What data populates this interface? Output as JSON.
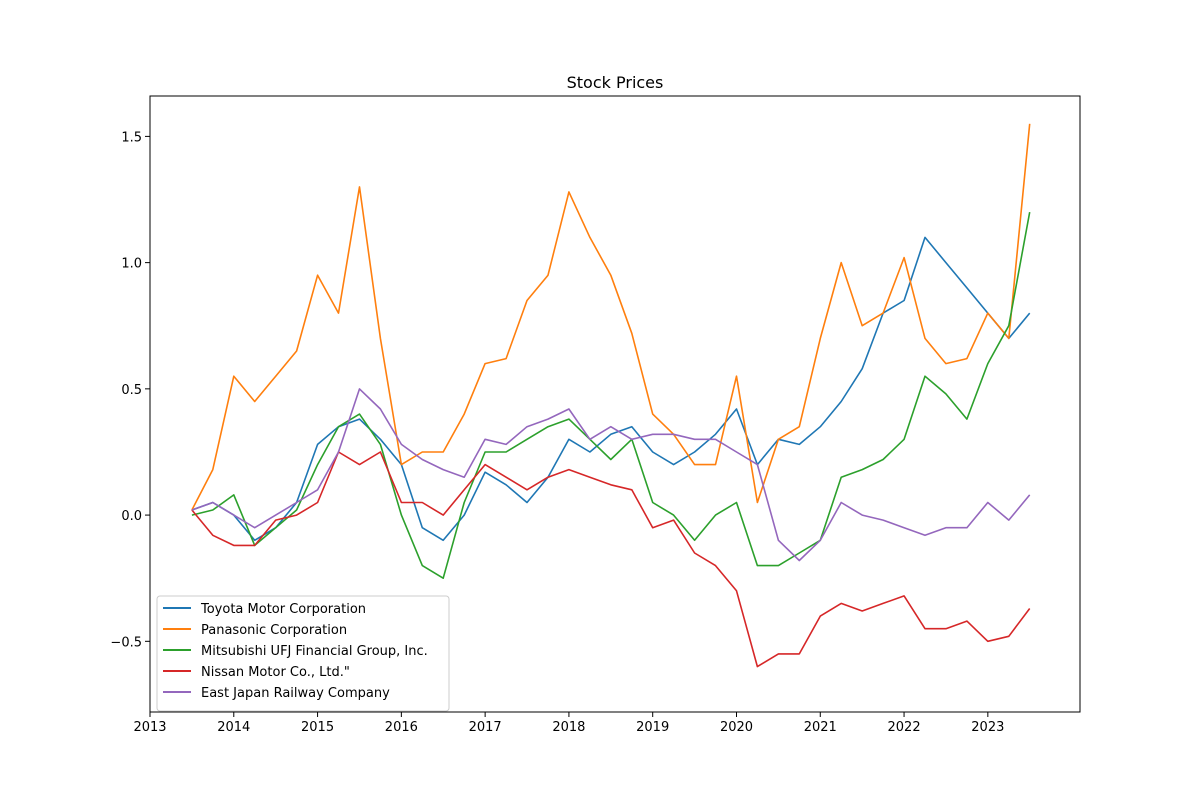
{
  "chart_data": {
    "type": "line",
    "title": "Stock Prices",
    "xlabel": "",
    "ylabel": "",
    "xlim": [
      2013.0,
      2024.1
    ],
    "ylim": [
      -0.78,
      1.66
    ],
    "x_ticks": [
      "2013",
      "2014",
      "2015",
      "2016",
      "2017",
      "2018",
      "2019",
      "2020",
      "2021",
      "2022",
      "2023"
    ],
    "y_ticks": [
      {
        "value": -0.5,
        "label": "−0.5"
      },
      {
        "value": 0.0,
        "label": "0.0"
      },
      {
        "value": 0.5,
        "label": "0.5"
      },
      {
        "value": 1.0,
        "label": "1.0"
      },
      {
        "value": 1.5,
        "label": "1.5"
      }
    ],
    "grid": false,
    "legend_position": "lower-left",
    "x": [
      2013.5,
      2013.75,
      2014.0,
      2014.25,
      2014.5,
      2014.75,
      2015.0,
      2015.25,
      2015.5,
      2015.75,
      2016.0,
      2016.25,
      2016.5,
      2016.75,
      2017.0,
      2017.25,
      2017.5,
      2017.75,
      2018.0,
      2018.25,
      2018.5,
      2018.75,
      2019.0,
      2019.25,
      2019.5,
      2019.75,
      2020.0,
      2020.25,
      2020.5,
      2020.75,
      2021.0,
      2021.25,
      2021.5,
      2021.75,
      2022.0,
      2022.25,
      2022.5,
      2022.75,
      2023.0,
      2023.25,
      2023.5
    ],
    "series": [
      {
        "name": "Toyota Motor Corporation",
        "color": "#1f77b4",
        "values": [
          0.02,
          0.05,
          0.0,
          -0.1,
          -0.05,
          0.05,
          0.28,
          0.35,
          0.38,
          0.3,
          0.2,
          -0.05,
          -0.1,
          0.0,
          0.17,
          0.12,
          0.05,
          0.15,
          0.3,
          0.25,
          0.32,
          0.35,
          0.25,
          0.2,
          0.25,
          0.32,
          0.42,
          0.2,
          0.3,
          0.28,
          0.35,
          0.45,
          0.58,
          0.8,
          0.85,
          1.1,
          1.0,
          0.9,
          0.8,
          0.7,
          0.8
        ]
      },
      {
        "name": "Panasonic Corporation",
        "color": "#ff7f0e",
        "values": [
          0.02,
          0.18,
          0.55,
          0.45,
          0.55,
          0.65,
          0.95,
          0.8,
          1.3,
          0.7,
          0.2,
          0.25,
          0.25,
          0.4,
          0.6,
          0.62,
          0.85,
          0.95,
          1.28,
          1.1,
          0.95,
          0.72,
          0.4,
          0.32,
          0.2,
          0.2,
          0.55,
          0.05,
          0.3,
          0.35,
          0.7,
          1.0,
          0.75,
          0.8,
          1.02,
          0.7,
          0.6,
          0.62,
          0.8,
          0.7,
          1.55
        ]
      },
      {
        "name": "Mitsubishi UFJ Financial Group, Inc.",
        "color": "#2ca02c",
        "values": [
          0.0,
          0.02,
          0.08,
          -0.12,
          -0.05,
          0.02,
          0.2,
          0.35,
          0.4,
          0.28,
          0.0,
          -0.2,
          -0.25,
          0.05,
          0.25,
          0.25,
          0.3,
          0.35,
          0.38,
          0.3,
          0.22,
          0.3,
          0.05,
          0.0,
          -0.1,
          0.0,
          0.05,
          -0.2,
          -0.2,
          -0.15,
          -0.1,
          0.15,
          0.18,
          0.22,
          0.3,
          0.55,
          0.48,
          0.38,
          0.6,
          0.75,
          1.2
        ]
      },
      {
        "name": "Nissan Motor Co., Ltd.\"",
        "color": "#d62728",
        "values": [
          0.02,
          -0.08,
          -0.12,
          -0.12,
          -0.02,
          0.0,
          0.05,
          0.25,
          0.2,
          0.25,
          0.05,
          0.05,
          0.0,
          0.1,
          0.2,
          0.15,
          0.1,
          0.15,
          0.18,
          0.15,
          0.12,
          0.1,
          -0.05,
          -0.02,
          -0.15,
          -0.2,
          -0.3,
          -0.6,
          -0.55,
          -0.55,
          -0.4,
          -0.35,
          -0.38,
          -0.35,
          -0.32,
          -0.45,
          -0.45,
          -0.42,
          -0.5,
          -0.48,
          -0.37
        ]
      },
      {
        "name": "East Japan Railway Company",
        "color": "#9467bd",
        "values": [
          0.02,
          0.05,
          0.0,
          -0.05,
          0.0,
          0.05,
          0.1,
          0.25,
          0.5,
          0.42,
          0.28,
          0.22,
          0.18,
          0.15,
          0.3,
          0.28,
          0.35,
          0.38,
          0.42,
          0.3,
          0.35,
          0.3,
          0.32,
          0.32,
          0.3,
          0.3,
          0.25,
          0.2,
          -0.1,
          -0.18,
          -0.1,
          0.05,
          0.0,
          -0.02,
          -0.05,
          -0.08,
          -0.05,
          -0.05,
          0.05,
          -0.02,
          0.08
        ]
      }
    ]
  }
}
